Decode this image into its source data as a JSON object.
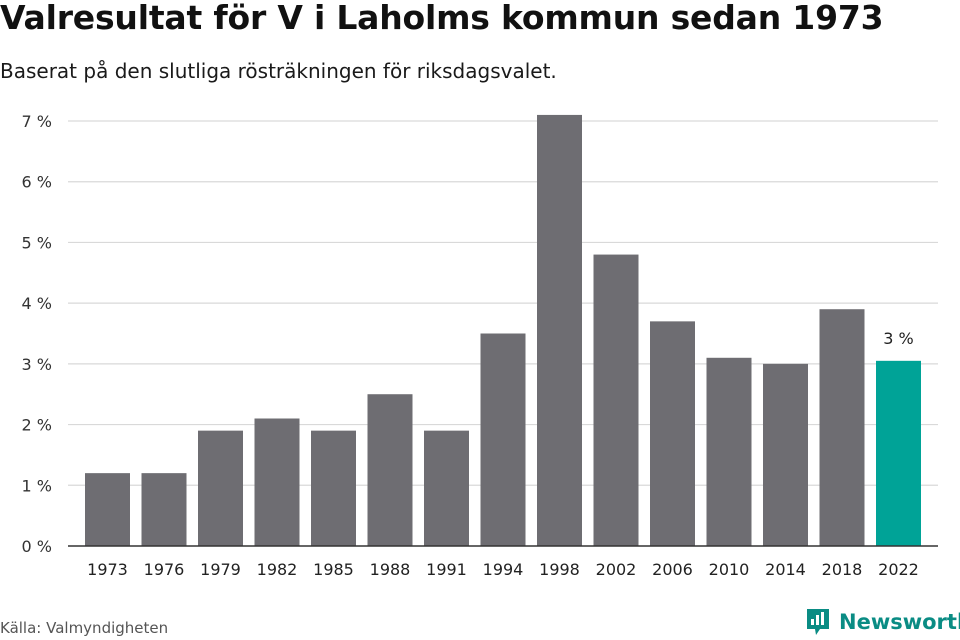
{
  "title": "Valresultat för V i Laholms kommun sedan 1973",
  "subtitle": "Baserat på den slutliga rösträkningen för riksdagsvalet.",
  "source": "Källa: Valmyndigheten",
  "brand": {
    "name": "Newsworthy"
  },
  "colors": {
    "bar": "#6e6d72",
    "highlight": "#00a397",
    "grid": "#d9d9d9",
    "axis": "#333333",
    "brand": "#0a8c84"
  },
  "chart_data": {
    "type": "bar",
    "title": "Valresultat för V i Laholms kommun sedan 1973",
    "subtitle": "Baserat på den slutliga rösträkningen för riksdagsvalet.",
    "xlabel": "",
    "ylabel": "",
    "categories": [
      "1973",
      "1976",
      "1979",
      "1982",
      "1985",
      "1988",
      "1991",
      "1994",
      "1998",
      "2002",
      "2006",
      "2010",
      "2014",
      "2018",
      "2022"
    ],
    "values": [
      1.2,
      1.2,
      1.9,
      2.1,
      1.9,
      2.5,
      1.9,
      3.5,
      7.1,
      4.8,
      3.7,
      3.1,
      3.0,
      3.9,
      3.05
    ],
    "highlight_index": 14,
    "highlight_label": "3 %",
    "ylim": [
      0,
      7
    ],
    "yticks": [
      0,
      1,
      2,
      3,
      4,
      5,
      6,
      7
    ],
    "ytick_labels": [
      "0 %",
      "1 %",
      "2 %",
      "3 %",
      "4 %",
      "5 %",
      "6 %",
      "7 %"
    ],
    "grid": true,
    "legend": "none"
  }
}
